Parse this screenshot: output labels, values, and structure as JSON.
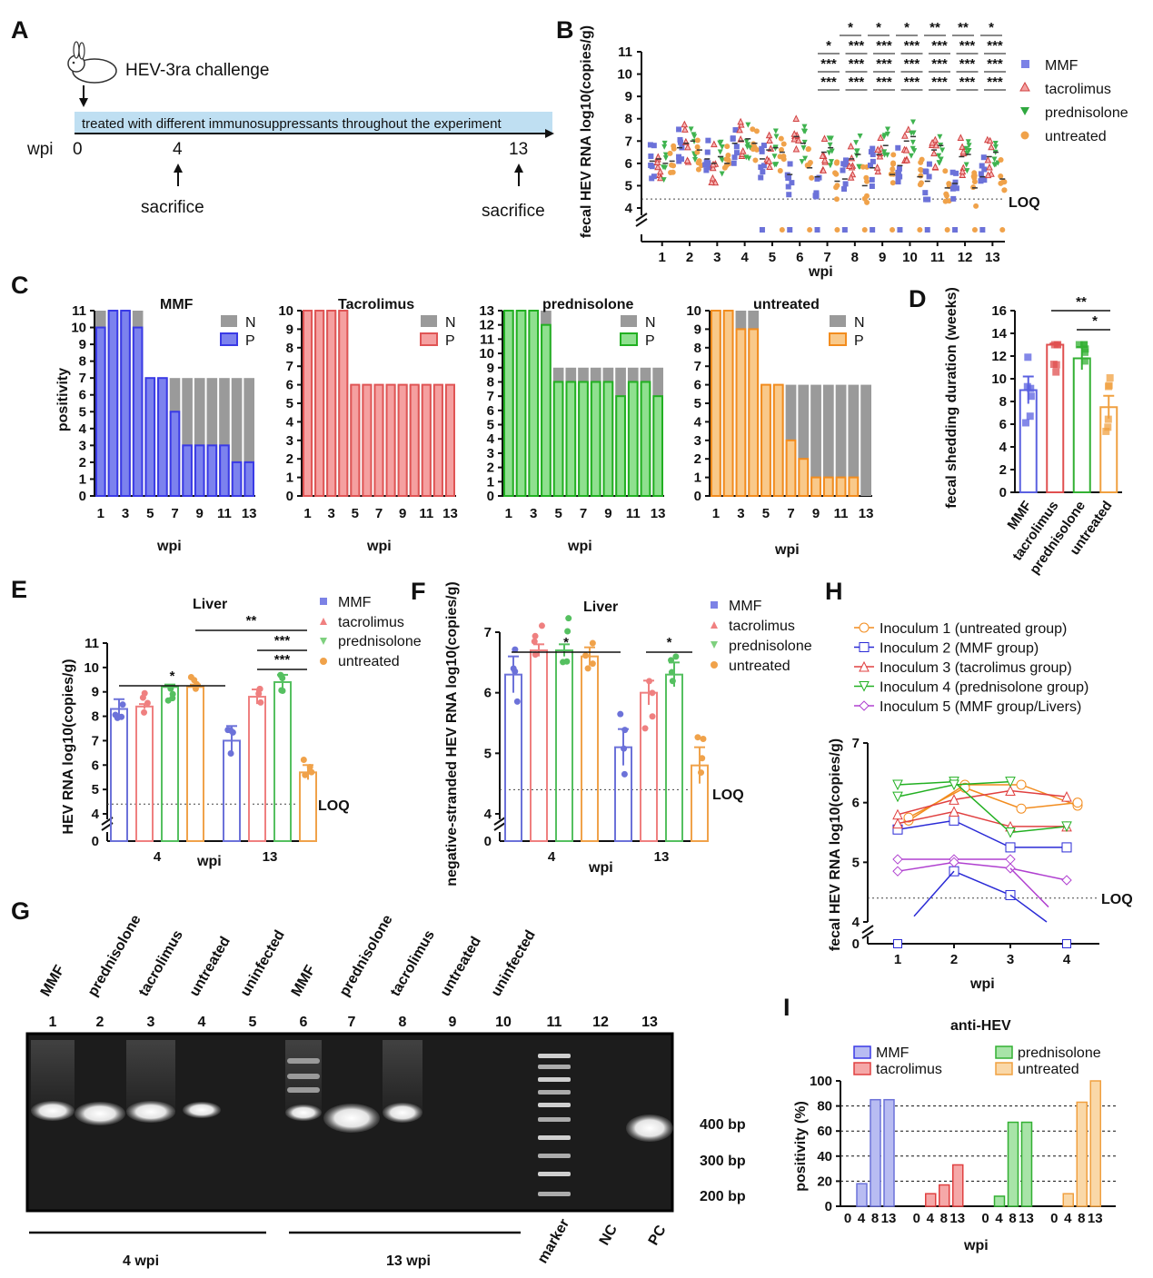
{
  "figure": {
    "panel_labels": [
      "A",
      "B",
      "C",
      "D",
      "E",
      "F",
      "G",
      "H",
      "I"
    ]
  },
  "panelA": {
    "label": "A",
    "challenge": "HEV-3ra challenge",
    "bar_text": "treated with different immunosuppressants throughout the experiment",
    "axis_label": "wpi",
    "ticks": [
      "0",
      "4",
      "13"
    ],
    "sacrifice": "sacrifice"
  },
  "chart_data": [
    {
      "id": "B",
      "type": "scatter",
      "ylabel": "fecal HEV RNA log10(copies/g)",
      "xlabel": "wpi",
      "categories": [
        "1",
        "2",
        "3",
        "4",
        "5",
        "6",
        "7",
        "8",
        "9",
        "10",
        "11",
        "12",
        "13"
      ],
      "yticks": [
        "4",
        "5",
        "6",
        "7",
        "8",
        "9",
        "10",
        "11"
      ],
      "ylim": [
        4,
        11
      ],
      "loq_label": "LOQ",
      "loq": 4.4,
      "series": [
        {
          "name": "MMF",
          "color": "#6C72D9",
          "marker": "square",
          "means": [
            6.1,
            6.7,
            6.2,
            6.9,
            6.2,
            5.5,
            5.4,
            5.3,
            5.8,
            5.9,
            5.2,
            5.1,
            5.4
          ]
        },
        {
          "name": "tacrolimus",
          "color": "#EF8080",
          "marker": "triangle-up",
          "means": [
            6.2,
            6.9,
            6.0,
            7.0,
            6.6,
            7.2,
            6.5,
            6.2,
            6.4,
            7.0,
            6.6,
            6.3,
            6.3
          ]
        },
        {
          "name": "prednisolone",
          "color": "#3FB34F",
          "marker": "triangle-down",
          "means": [
            6.0,
            7.0,
            6.3,
            7.1,
            6.7,
            6.9,
            6.7,
            6.4,
            6.8,
            7.2,
            6.8,
            6.4,
            6.5
          ]
        },
        {
          "name": "untreated",
          "color": "#F0A24A",
          "marker": "circle",
          "means": [
            6.1,
            6.6,
            6.0,
            6.9,
            6.5,
            5.8,
            5.2,
            5.0,
            5.5,
            5.4,
            4.9,
            4.9,
            5.3
          ]
        }
      ],
      "significance_rows": [
        [
          "*",
          "*",
          "*",
          "**",
          "**",
          "*"
        ],
        [
          "*",
          "***",
          "***",
          "***",
          "***",
          "***",
          "***"
        ],
        [
          "***",
          "***",
          "***",
          "***",
          "***",
          "***",
          "***"
        ],
        [
          "***",
          "***",
          "***",
          "***",
          "***",
          "***",
          "***"
        ]
      ]
    },
    {
      "id": "C-MMF",
      "type": "bar",
      "title": "MMF",
      "ylabel": "positivity",
      "xlabel": "wpi",
      "x": [
        1,
        2,
        3,
        4,
        5,
        6,
        7,
        8,
        9,
        10,
        11,
        12,
        13
      ],
      "xticks": [
        "1",
        "3",
        "5",
        "7",
        "9",
        "11",
        "13"
      ],
      "ymax": 11,
      "yticks": [
        "0",
        "1",
        "2",
        "3",
        "4",
        "5",
        "6",
        "7",
        "8",
        "9",
        "10",
        "11"
      ],
      "legend": [
        "N",
        "P"
      ],
      "total": [
        11,
        11,
        11,
        11,
        7,
        7,
        7,
        7,
        7,
        7,
        7,
        7,
        7
      ],
      "positive": [
        10,
        11,
        11,
        10,
        7,
        7,
        5,
        3,
        3,
        3,
        3,
        2,
        2
      ],
      "color": "#3A3AE6",
      "fill": "#7C82EE"
    },
    {
      "id": "C-Tacrolimus",
      "type": "bar",
      "title": "Tacrolimus",
      "xlabel": "wpi",
      "x": [
        1,
        2,
        3,
        4,
        5,
        6,
        7,
        8,
        9,
        10,
        11,
        12,
        13
      ],
      "xticks": [
        "1",
        "3",
        "5",
        "7",
        "9",
        "11",
        "13"
      ],
      "ymax": 10,
      "yticks": [
        "0",
        "1",
        "2",
        "3",
        "4",
        "5",
        "6",
        "7",
        "8",
        "9",
        "10"
      ],
      "legend": [
        "N",
        "P"
      ],
      "total": [
        10,
        10,
        10,
        10,
        6,
        6,
        6,
        6,
        6,
        6,
        6,
        6,
        6
      ],
      "positive": [
        10,
        10,
        10,
        10,
        6,
        6,
        6,
        6,
        6,
        6,
        6,
        6,
        6
      ],
      "color": "#E05555",
      "fill": "#F5A0A0"
    },
    {
      "id": "C-prednisolone",
      "type": "bar",
      "title": "prednisolone",
      "xlabel": "wpi",
      "x": [
        1,
        2,
        3,
        4,
        5,
        6,
        7,
        8,
        9,
        10,
        11,
        12,
        13
      ],
      "xticks": [
        "1",
        "3",
        "5",
        "7",
        "9",
        "11",
        "13"
      ],
      "ymax": 13,
      "yticks": [
        "0",
        "1",
        "2",
        "3",
        "4",
        "5",
        "6",
        "7",
        "8",
        "9",
        "10",
        "11",
        "12",
        "13"
      ],
      "legend": [
        "N",
        "P"
      ],
      "total": [
        13,
        13,
        13,
        13,
        9,
        9,
        9,
        9,
        9,
        9,
        9,
        9,
        9
      ],
      "positive": [
        13,
        13,
        13,
        12,
        8,
        8,
        8,
        8,
        8,
        7,
        8,
        8,
        7
      ],
      "color": "#22B022",
      "fill": "#8FE08F"
    },
    {
      "id": "C-untreated",
      "type": "bar",
      "title": "untreated",
      "xlabel": "wpi",
      "x": [
        1,
        2,
        3,
        4,
        5,
        6,
        7,
        8,
        9,
        10,
        11,
        12,
        13
      ],
      "xticks": [
        "1",
        "3",
        "5",
        "7",
        "9",
        "11",
        "13"
      ],
      "ymax": 10,
      "yticks": [
        "0",
        "1",
        "2",
        "3",
        "4",
        "5",
        "6",
        "7",
        "8",
        "9",
        "10"
      ],
      "legend": [
        "N",
        "P"
      ],
      "total": [
        10,
        10,
        10,
        10,
        6,
        6,
        6,
        6,
        6,
        6,
        6,
        6,
        6
      ],
      "positive": [
        10,
        10,
        9,
        9,
        6,
        6,
        3,
        2,
        1,
        1,
        1,
        1,
        0
      ],
      "color": "#F28C1E",
      "fill": "#F9C98A"
    },
    {
      "id": "D",
      "type": "bar",
      "ylabel": "fecal shedding duration (weeks)",
      "categories": [
        "MMF",
        "tacrolimus",
        "prednisolone",
        "untreated"
      ],
      "values": [
        9.0,
        13.0,
        11.8,
        7.5
      ],
      "errors": [
        1.2,
        0.1,
        1.0,
        1.0
      ],
      "colors": [
        "#5A60E0",
        "#E05050",
        "#33B033",
        "#F0A040"
      ],
      "ylim": [
        0,
        16
      ],
      "yticks": [
        "0",
        "2",
        "4",
        "6",
        "8",
        "10",
        "12",
        "14",
        "16"
      ],
      "significance": [
        "**",
        "*"
      ]
    },
    {
      "id": "E",
      "type": "bar",
      "title": "Liver",
      "ylabel": "HEV RNA log10(copies/g)",
      "xlabel": "wpi",
      "groups": [
        "4",
        "13"
      ],
      "series": [
        {
          "name": "MMF",
          "color": "#6C72D9",
          "values": [
            8.3,
            7.0
          ],
          "errors": [
            0.4,
            0.6
          ]
        },
        {
          "name": "tacrolimus",
          "color": "#EF8080",
          "values": [
            8.4,
            8.8
          ],
          "errors": [
            0.1,
            0.3
          ]
        },
        {
          "name": "prednisolone",
          "color": "#55C060",
          "values": [
            9.2,
            9.4
          ],
          "errors": [
            0.1,
            0.3
          ]
        },
        {
          "name": "untreated",
          "color": "#F0A24A",
          "values": [
            9.2,
            5.7
          ],
          "errors": [
            0.1,
            0.3
          ]
        }
      ],
      "ylim": [
        4,
        11
      ],
      "yticks": [
        "4",
        "5",
        "6",
        "7",
        "8",
        "9",
        "10",
        "11"
      ],
      "loq_label": "LOQ",
      "loq": 4.4,
      "significance": [
        "*",
        "**",
        "***",
        "***"
      ]
    },
    {
      "id": "F",
      "type": "bar",
      "title": "Liver",
      "ylabel": "negative-stranded HEV RNA log10(copies/g)",
      "xlabel": "wpi",
      "groups": [
        "4",
        "13"
      ],
      "series": [
        {
          "name": "MMF",
          "color": "#6C72D9",
          "values": [
            6.3,
            5.1
          ],
          "errors": [
            0.3,
            0.3
          ]
        },
        {
          "name": "tacrolimus",
          "color": "#EF8080",
          "values": [
            6.7,
            6.0
          ],
          "errors": [
            0.1,
            0.2
          ]
        },
        {
          "name": "prednisolone",
          "color": "#55C060",
          "values": [
            6.7,
            6.3
          ],
          "errors": [
            0.1,
            0.2
          ]
        },
        {
          "name": "untreated",
          "color": "#F0A24A",
          "values": [
            6.6,
            4.8
          ],
          "errors": [
            0.15,
            0.3
          ]
        }
      ],
      "ylim": [
        4,
        7
      ],
      "yticks": [
        "4",
        "5",
        "6",
        "7"
      ],
      "loq_label": "LOQ",
      "loq": 4.4,
      "significance": [
        "*",
        "*"
      ]
    },
    {
      "id": "H",
      "type": "line",
      "ylabel": "fecal HEV RNA log10(copies/g)",
      "xlabel": "wpi",
      "x": [
        "1",
        "2",
        "3",
        "4"
      ],
      "yticks": [
        "4",
        "5",
        "6",
        "7"
      ],
      "ylim": [
        4,
        7
      ],
      "loq_label": "LOQ",
      "loq": 4.4,
      "series": [
        {
          "name": "Inoculum 1 (untreated group)",
          "color": "#F28C1E",
          "marker": "circle",
          "lines": [
            [
              5.7,
              6.3,
              6.3,
              5.95
            ],
            [
              5.75,
              6.25,
              5.9,
              6.0
            ]
          ]
        },
        {
          "name": "Inoculum 2 (MMF group)",
          "color": "#2A2AD6",
          "marker": "square",
          "lines": [
            [
              5.55,
              5.7,
              5.25,
              5.25
            ],
            [
              null,
              4.85,
              4.45,
              null
            ]
          ]
        },
        {
          "name": "Inoculum 3 (tacrolimus group)",
          "color": "#E04040",
          "marker": "triangle-up",
          "lines": [
            [
              5.8,
              6.05,
              6.2,
              6.1
            ],
            [
              5.65,
              5.85,
              5.6,
              5.6
            ]
          ]
        },
        {
          "name": "Inoculum 4 (prednisolone group)",
          "color": "#22B022",
          "marker": "triangle-down",
          "lines": [
            [
              6.3,
              6.35,
              5.5,
              5.6
            ],
            [
              6.1,
              6.3,
              6.35,
              null
            ]
          ]
        },
        {
          "name": "Inoculum 5 (MMF group/Livers)",
          "color": "#B040D0",
          "marker": "diamond",
          "lines": [
            [
              5.05,
              5.05,
              5.05,
              null
            ],
            [
              4.85,
              5.0,
              4.9,
              4.7
            ]
          ]
        }
      ]
    },
    {
      "id": "I",
      "type": "bar",
      "title": "anti-HEV",
      "ylabel": "positivity (%)",
      "xlabel": "wpi",
      "x": [
        "0",
        "4",
        "8",
        "13"
      ],
      "yticks": [
        "0",
        "20",
        "40",
        "60",
        "80",
        "100"
      ],
      "ylim": [
        0,
        100
      ],
      "series": [
        {
          "name": "MMF",
          "color": "#6C72D9",
          "fill": "#B8BCF2",
          "values": [
            0,
            18,
            85,
            85
          ]
        },
        {
          "name": "tacrolimus",
          "color": "#E04040",
          "fill": "#F5A8A8",
          "values": [
            0,
            10,
            17,
            33
          ]
        },
        {
          "name": "prednisolone",
          "color": "#33B033",
          "fill": "#A8E4A8",
          "values": [
            0,
            8,
            67,
            67
          ]
        },
        {
          "name": "untreated",
          "color": "#F0A040",
          "fill": "#FAD8A8",
          "values": [
            0,
            10,
            83,
            100
          ]
        }
      ]
    }
  ],
  "panelG": {
    "label": "G",
    "lane_labels": [
      "MMF",
      "prednisolone",
      "tacrolimus",
      "untreated",
      "uninfected",
      "MMF",
      "prednisolone",
      "tacrolimus",
      "untreated",
      "uninfected"
    ],
    "lane_numbers": [
      "1",
      "2",
      "3",
      "4",
      "5",
      "6",
      "7",
      "8",
      "9",
      "10",
      "11",
      "12",
      "13"
    ],
    "size_labels": [
      "400 bp",
      "300 bp",
      "200 bp"
    ],
    "bottom_labels": [
      "4 wpi",
      "13 wpi",
      "marker",
      "NC",
      "PC"
    ]
  }
}
